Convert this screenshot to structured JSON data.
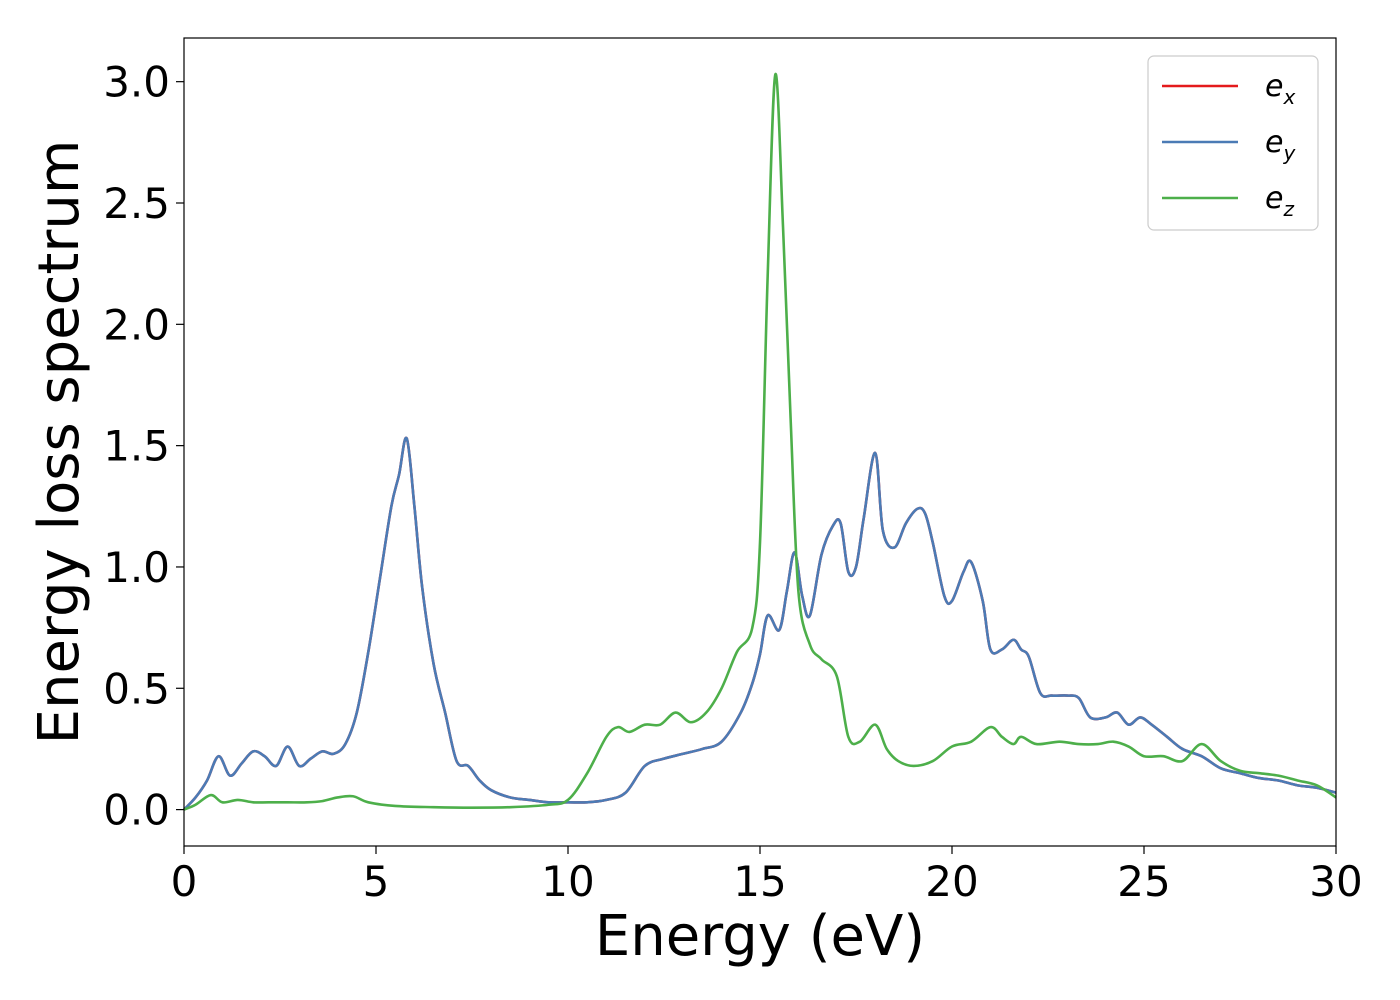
{
  "chart_data": {
    "type": "line",
    "xlabel": "Energy (eV)",
    "ylabel": "Energy loss spectrum",
    "xlim": [
      0,
      30
    ],
    "ylim": [
      -0.15,
      3.18
    ],
    "xticks": [
      "0",
      "5",
      "10",
      "15",
      "20",
      "25",
      "30"
    ],
    "yticks": [
      "0.0",
      "0.5",
      "1.0",
      "1.5",
      "2.0",
      "2.5",
      "3.0"
    ],
    "grid": false,
    "legend_position": "top-right",
    "series": [
      {
        "name": "e_x",
        "legend_base": "e",
        "legend_sub": "x",
        "color": "#e41a1c",
        "x": [
          0,
          0.3,
          0.6,
          0.9,
          1.2,
          1.5,
          1.8,
          2.1,
          2.4,
          2.7,
          3.0,
          3.3,
          3.6,
          3.9,
          4.2,
          4.5,
          4.8,
          5.1,
          5.4,
          5.6,
          5.8,
          6.0,
          6.2,
          6.5,
          6.8,
          7.1,
          7.4,
          7.7,
          8.0,
          8.5,
          9.0,
          9.5,
          10.0,
          10.5,
          11.0,
          11.5,
          12.0,
          12.5,
          13.0,
          13.5,
          14.0,
          14.5,
          14.8,
          15.0,
          15.2,
          15.5,
          15.7,
          15.9,
          16.1,
          16.3,
          16.6,
          16.9,
          17.1,
          17.3,
          17.5,
          17.7,
          18.0,
          18.2,
          18.5,
          18.8,
          19.1,
          19.3,
          19.5,
          19.8,
          20.0,
          20.3,
          20.5,
          20.8,
          21.0,
          21.3,
          21.6,
          21.8,
          22.0,
          22.3,
          22.6,
          23.0,
          23.3,
          23.6,
          24.0,
          24.3,
          24.6,
          24.9,
          25.2,
          25.6,
          26.0,
          26.5,
          27.0,
          27.5,
          28.0,
          28.5,
          29.0,
          29.5,
          30.0
        ],
        "y": [
          0.0,
          0.05,
          0.12,
          0.22,
          0.14,
          0.19,
          0.24,
          0.22,
          0.18,
          0.26,
          0.18,
          0.21,
          0.24,
          0.23,
          0.27,
          0.4,
          0.65,
          0.95,
          1.25,
          1.38,
          1.53,
          1.25,
          0.92,
          0.6,
          0.4,
          0.2,
          0.18,
          0.12,
          0.08,
          0.05,
          0.04,
          0.03,
          0.03,
          0.03,
          0.04,
          0.07,
          0.18,
          0.21,
          0.23,
          0.25,
          0.28,
          0.4,
          0.52,
          0.64,
          0.8,
          0.74,
          0.9,
          1.06,
          0.88,
          0.8,
          1.05,
          1.17,
          1.18,
          0.98,
          1.0,
          1.2,
          1.47,
          1.15,
          1.08,
          1.18,
          1.24,
          1.22,
          1.1,
          0.88,
          0.86,
          0.98,
          1.02,
          0.86,
          0.66,
          0.66,
          0.7,
          0.66,
          0.63,
          0.48,
          0.47,
          0.47,
          0.46,
          0.38,
          0.38,
          0.4,
          0.35,
          0.38,
          0.35,
          0.3,
          0.25,
          0.22,
          0.17,
          0.15,
          0.13,
          0.12,
          0.1,
          0.09,
          0.07
        ]
      },
      {
        "name": "e_y",
        "legend_base": "e",
        "legend_sub": "y",
        "color": "#4b7bb5",
        "x": [
          0,
          0.3,
          0.6,
          0.9,
          1.2,
          1.5,
          1.8,
          2.1,
          2.4,
          2.7,
          3.0,
          3.3,
          3.6,
          3.9,
          4.2,
          4.5,
          4.8,
          5.1,
          5.4,
          5.6,
          5.8,
          6.0,
          6.2,
          6.5,
          6.8,
          7.1,
          7.4,
          7.7,
          8.0,
          8.5,
          9.0,
          9.5,
          10.0,
          10.5,
          11.0,
          11.5,
          12.0,
          12.5,
          13.0,
          13.5,
          14.0,
          14.5,
          14.8,
          15.0,
          15.2,
          15.5,
          15.7,
          15.9,
          16.1,
          16.3,
          16.6,
          16.9,
          17.1,
          17.3,
          17.5,
          17.7,
          18.0,
          18.2,
          18.5,
          18.8,
          19.1,
          19.3,
          19.5,
          19.8,
          20.0,
          20.3,
          20.5,
          20.8,
          21.0,
          21.3,
          21.6,
          21.8,
          22.0,
          22.3,
          22.6,
          23.0,
          23.3,
          23.6,
          24.0,
          24.3,
          24.6,
          24.9,
          25.2,
          25.6,
          26.0,
          26.5,
          27.0,
          27.5,
          28.0,
          28.5,
          29.0,
          29.5,
          30.0
        ],
        "y": [
          0.0,
          0.05,
          0.12,
          0.22,
          0.14,
          0.19,
          0.24,
          0.22,
          0.18,
          0.26,
          0.18,
          0.21,
          0.24,
          0.23,
          0.27,
          0.4,
          0.65,
          0.95,
          1.25,
          1.38,
          1.53,
          1.25,
          0.92,
          0.6,
          0.4,
          0.2,
          0.18,
          0.12,
          0.08,
          0.05,
          0.04,
          0.03,
          0.03,
          0.03,
          0.04,
          0.07,
          0.18,
          0.21,
          0.23,
          0.25,
          0.28,
          0.4,
          0.52,
          0.64,
          0.8,
          0.74,
          0.9,
          1.06,
          0.88,
          0.8,
          1.05,
          1.17,
          1.18,
          0.98,
          1.0,
          1.2,
          1.47,
          1.15,
          1.08,
          1.18,
          1.24,
          1.22,
          1.1,
          0.88,
          0.86,
          0.98,
          1.02,
          0.86,
          0.66,
          0.66,
          0.7,
          0.66,
          0.63,
          0.48,
          0.47,
          0.47,
          0.46,
          0.38,
          0.38,
          0.4,
          0.35,
          0.38,
          0.35,
          0.3,
          0.25,
          0.22,
          0.17,
          0.15,
          0.13,
          0.12,
          0.1,
          0.09,
          0.07
        ]
      },
      {
        "name": "e_z",
        "legend_base": "e",
        "legend_sub": "z",
        "color": "#4daf4a",
        "x": [
          0,
          0.3,
          0.7,
          1.0,
          1.4,
          1.8,
          2.2,
          2.7,
          3.2,
          3.6,
          4.0,
          4.4,
          4.8,
          5.5,
          6.5,
          7.5,
          8.5,
          9.5,
          10.0,
          10.5,
          11.0,
          11.3,
          11.6,
          12.0,
          12.4,
          12.8,
          13.2,
          13.6,
          14.0,
          14.4,
          14.8,
          15.0,
          15.2,
          15.4,
          15.6,
          15.8,
          16.0,
          16.3,
          16.6,
          17.0,
          17.3,
          17.6,
          18.0,
          18.3,
          18.6,
          19.0,
          19.5,
          20.0,
          20.5,
          21.0,
          21.3,
          21.6,
          21.8,
          22.2,
          22.8,
          23.3,
          23.8,
          24.2,
          24.6,
          25.0,
          25.5,
          26.0,
          26.5,
          27.0,
          27.5,
          28.0,
          28.5,
          29.0,
          29.5,
          30.0
        ],
        "y": [
          0.0,
          0.02,
          0.06,
          0.03,
          0.04,
          0.03,
          0.03,
          0.03,
          0.03,
          0.035,
          0.05,
          0.055,
          0.03,
          0.015,
          0.01,
          0.008,
          0.01,
          0.02,
          0.04,
          0.15,
          0.3,
          0.34,
          0.32,
          0.35,
          0.35,
          0.4,
          0.36,
          0.4,
          0.5,
          0.65,
          0.75,
          1.1,
          2.2,
          3.03,
          2.4,
          1.6,
          0.9,
          0.68,
          0.62,
          0.55,
          0.3,
          0.28,
          0.35,
          0.25,
          0.2,
          0.18,
          0.2,
          0.26,
          0.28,
          0.34,
          0.3,
          0.27,
          0.3,
          0.27,
          0.28,
          0.27,
          0.27,
          0.28,
          0.26,
          0.22,
          0.22,
          0.2,
          0.27,
          0.2,
          0.16,
          0.15,
          0.14,
          0.12,
          0.1,
          0.05
        ]
      }
    ]
  }
}
